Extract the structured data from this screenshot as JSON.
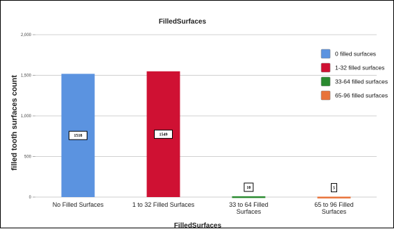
{
  "chart_data": {
    "type": "bar",
    "title": "FilledSurfaces",
    "xlabel": "FilledSurfaces",
    "ylabel": "filled tooth surfaces count",
    "categories": [
      [
        "No Filled Surfaces"
      ],
      [
        "1 to 32 Filled Surfaces"
      ],
      [
        "33 to 64 Filled",
        "Surfaces"
      ],
      [
        "65 to 96 Filled",
        "Surfaces"
      ]
    ],
    "values": [
      1518,
      1549,
      10,
      5
    ],
    "data_labels": [
      "1518",
      "1549",
      "10",
      "5"
    ],
    "ylim": [
      0,
      2000
    ],
    "yticks": [
      0,
      500,
      1000,
      1500,
      2000
    ],
    "ytick_labels": [
      "0",
      "500",
      "1,000",
      "1,500",
      "2,000"
    ],
    "grid": true,
    "legend_position": "right",
    "legend": [
      {
        "label": "0 filled surfaces",
        "color": "#5b93e0"
      },
      {
        "label": "1-32 filled surfaces",
        "color": "#cf1133"
      },
      {
        "label": "33-64 filled surfaces",
        "color": "#2a8a2f"
      },
      {
        "label": "65-96 filled surfaces",
        "color": "#e8733a"
      }
    ],
    "bar_colors": [
      "#5b93e0",
      "#cf1133",
      "#2a8a2f",
      "#e8733a"
    ]
  }
}
